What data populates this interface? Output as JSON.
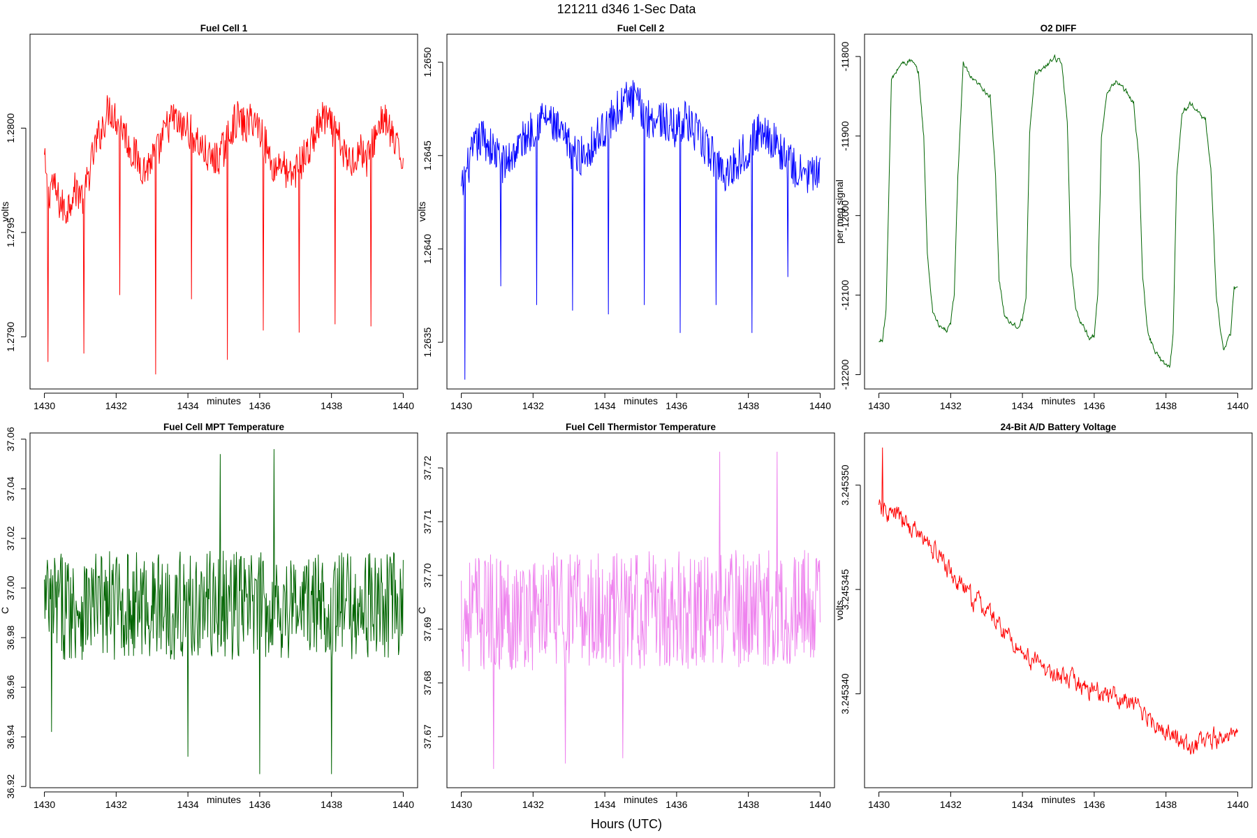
{
  "figure": {
    "title": "121211    d346    1-Sec Data",
    "xlabel": "Hours (UTC)"
  },
  "chart_data": [
    {
      "type": "line",
      "title": "Fuel Cell 1",
      "xlabel": "minutes",
      "ylabel": "volts",
      "color": "#ff0000",
      "xlim": [
        1429.6,
        1440.4
      ],
      "ylim": [
        1.27875,
        1.28045
      ],
      "xticks": [
        1430,
        1432,
        1434,
        1436,
        1438,
        1440
      ],
      "yticks": [
        1.279,
        1.2795,
        1.28
      ],
      "ytick_labels": [
        "1.2790",
        "1.2795",
        "1.2800"
      ],
      "series": [
        {
          "x": [
            1430.0,
            1430.1,
            1430.2,
            1430.4,
            1430.6,
            1430.8,
            1431.0,
            1431.1,
            1431.2,
            1431.4,
            1431.6,
            1431.8,
            1432.0,
            1432.2,
            1432.4,
            1432.6,
            1432.8,
            1433.0,
            1433.2,
            1433.4,
            1433.6,
            1433.8,
            1434.0,
            1434.2,
            1434.4,
            1434.6,
            1434.8,
            1435.0,
            1435.2,
            1435.4,
            1435.6,
            1435.8,
            1436.0,
            1436.2,
            1436.4,
            1436.6,
            1436.8,
            1437.0,
            1437.2,
            1437.4,
            1437.6,
            1437.8,
            1438.0,
            1438.2,
            1438.4,
            1438.6,
            1438.8,
            1439.0,
            1439.2,
            1439.4,
            1439.6,
            1439.8,
            1440.0
          ],
          "values": [
            1.27985,
            1.27965,
            1.27975,
            1.27965,
            1.2796,
            1.2797,
            1.2797,
            1.27965,
            1.27975,
            1.2799,
            1.28,
            1.2801,
            1.28005,
            1.28,
            1.2799,
            1.27985,
            1.2798,
            1.27985,
            1.2799,
            1.28,
            1.28005,
            1.28,
            1.28,
            1.27995,
            1.2799,
            1.27985,
            1.27985,
            1.2799,
            1.28,
            1.28005,
            1.28,
            1.28005,
            1.28,
            1.2799,
            1.2798,
            1.27985,
            1.27975,
            1.2798,
            1.27985,
            1.2799,
            1.28,
            1.28005,
            1.28,
            1.27995,
            1.27985,
            1.27985,
            1.2799,
            1.27985,
            1.27995,
            1.28005,
            1.28,
            1.2799,
            1.27985
          ],
          "spikes": [
            {
              "x": 1430.1,
              "y": 1.27888
            },
            {
              "x": 1431.1,
              "y": 1.27892
            },
            {
              "x": 1432.1,
              "y": 1.2792
            },
            {
              "x": 1433.1,
              "y": 1.27882
            },
            {
              "x": 1434.1,
              "y": 1.27918
            },
            {
              "x": 1435.1,
              "y": 1.27889
            },
            {
              "x": 1436.1,
              "y": 1.27903
            },
            {
              "x": 1437.1,
              "y": 1.27902
            },
            {
              "x": 1438.1,
              "y": 1.27906
            },
            {
              "x": 1439.1,
              "y": 1.27905
            }
          ],
          "noise": 9e-05
        }
      ]
    },
    {
      "type": "line",
      "title": "Fuel Cell 2",
      "xlabel": "minutes",
      "ylabel": "volts",
      "color": "#0000ff",
      "xlim": [
        1429.6,
        1440.4
      ],
      "ylim": [
        1.26325,
        1.26515
      ],
      "xticks": [
        1430,
        1432,
        1434,
        1436,
        1438,
        1440
      ],
      "yticks": [
        1.2635,
        1.264,
        1.2645,
        1.265
      ],
      "ytick_labels": [
        "1.2635",
        "1.2640",
        "1.2645",
        "1.2650"
      ],
      "series": [
        {
          "x": [
            1430.0,
            1430.2,
            1430.4,
            1430.6,
            1430.8,
            1431.0,
            1431.2,
            1431.4,
            1431.6,
            1431.8,
            1432.0,
            1432.2,
            1432.4,
            1432.6,
            1432.8,
            1433.0,
            1433.2,
            1433.4,
            1433.6,
            1433.8,
            1434.0,
            1434.2,
            1434.4,
            1434.6,
            1434.8,
            1435.0,
            1435.2,
            1435.4,
            1435.6,
            1435.8,
            1436.0,
            1436.2,
            1436.4,
            1436.6,
            1436.8,
            1437.0,
            1437.2,
            1437.4,
            1437.6,
            1437.8,
            1438.0,
            1438.2,
            1438.4,
            1438.6,
            1438.8,
            1439.0,
            1439.2,
            1439.4,
            1439.6,
            1439.8,
            1440.0
          ],
          "values": [
            1.2643,
            1.26445,
            1.26455,
            1.2646,
            1.26455,
            1.2645,
            1.26445,
            1.2645,
            1.26455,
            1.2646,
            1.26465,
            1.2647,
            1.2647,
            1.26465,
            1.2646,
            1.26455,
            1.2645,
            1.2645,
            1.26455,
            1.2646,
            1.26465,
            1.2647,
            1.26475,
            1.2648,
            1.2648,
            1.26475,
            1.2647,
            1.2647,
            1.2647,
            1.26465,
            1.26465,
            1.2647,
            1.26465,
            1.2646,
            1.26455,
            1.2645,
            1.26445,
            1.2644,
            1.26445,
            1.2645,
            1.26455,
            1.2646,
            1.26465,
            1.2646,
            1.26455,
            1.2645,
            1.26445,
            1.2644,
            1.2644,
            1.2644,
            1.26438
          ],
          "spikes": [
            {
              "x": 1430.1,
              "y": 1.2633
            },
            {
              "x": 1431.1,
              "y": 1.2638
            },
            {
              "x": 1432.1,
              "y": 1.2637
            },
            {
              "x": 1433.1,
              "y": 1.26367
            },
            {
              "x": 1434.1,
              "y": 1.26365
            },
            {
              "x": 1435.1,
              "y": 1.2637
            },
            {
              "x": 1436.1,
              "y": 1.26355
            },
            {
              "x": 1437.1,
              "y": 1.2637
            },
            {
              "x": 1438.1,
              "y": 1.26355
            },
            {
              "x": 1439.1,
              "y": 1.26385
            }
          ],
          "noise": 0.00011
        }
      ]
    },
    {
      "type": "line",
      "title": "O2 DIFF",
      "xlabel": "minutes",
      "ylabel": "per meg signal",
      "color": "#006400",
      "xlim": [
        1429.6,
        1440.4
      ],
      "ylim": [
        -12218,
        -11772
      ],
      "xticks": [
        1430,
        1432,
        1434,
        1436,
        1438,
        1440
      ],
      "yticks": [
        -12200,
        -12100,
        -12000,
        -11900,
        -11800
      ],
      "ytick_labels": [
        "-12200",
        "-12100",
        "-12000",
        "-11900",
        "-11800"
      ],
      "series": [
        {
          "x": [
            1430.0,
            1430.1,
            1430.2,
            1430.35,
            1430.6,
            1430.9,
            1431.1,
            1431.25,
            1431.35,
            1431.5,
            1431.7,
            1431.9,
            1432.0,
            1432.1,
            1432.2,
            1432.35,
            1432.6,
            1432.9,
            1433.1,
            1433.25,
            1433.35,
            1433.5,
            1433.7,
            1433.9,
            1434.0,
            1434.1,
            1434.2,
            1434.35,
            1434.6,
            1434.9,
            1435.1,
            1435.25,
            1435.35,
            1435.5,
            1435.7,
            1435.9,
            1436.0,
            1436.1,
            1436.2,
            1436.35,
            1436.6,
            1436.9,
            1437.1,
            1437.25,
            1437.35,
            1437.5,
            1437.7,
            1437.9,
            1438.1,
            1438.2,
            1438.3,
            1438.45,
            1438.7,
            1438.9,
            1439.1,
            1439.25,
            1439.4,
            1439.6,
            1439.8,
            1439.9,
            1440.0
          ],
          "values": [
            -12160,
            -12155,
            -12120,
            -11830,
            -11810,
            -11805,
            -11820,
            -11900,
            -12050,
            -12120,
            -12140,
            -12145,
            -12135,
            -12100,
            -11950,
            -11810,
            -11830,
            -11840,
            -11850,
            -11950,
            -12080,
            -12125,
            -12135,
            -12140,
            -12130,
            -12100,
            -11900,
            -11820,
            -11815,
            -11800,
            -11810,
            -11880,
            -12060,
            -12120,
            -12140,
            -12155,
            -12150,
            -12100,
            -11900,
            -11850,
            -11830,
            -11845,
            -11860,
            -11930,
            -12080,
            -12150,
            -12170,
            -12185,
            -12190,
            -12150,
            -11950,
            -11870,
            -11860,
            -11870,
            -11880,
            -11940,
            -12100,
            -12170,
            -12150,
            -12090,
            -12090
          ],
          "noise": 6
        }
      ]
    },
    {
      "type": "line",
      "title": "Fuel Cell MPT Temperature",
      "xlabel": "minutes",
      "ylabel": "C",
      "color": "#006400",
      "xlim": [
        1429.6,
        1440.4
      ],
      "ylim": [
        36.9195,
        37.0625
      ],
      "xticks": [
        1430,
        1432,
        1434,
        1436,
        1438,
        1440
      ],
      "yticks": [
        36.92,
        36.94,
        36.96,
        36.98,
        37.0,
        37.02,
        37.04,
        37.06
      ],
      "ytick_labels": [
        "36.92",
        "36.94",
        "36.96",
        "36.98",
        "37.00",
        "37.02",
        "37.04",
        "37.06"
      ],
      "series": [
        {
          "x": [
            1430.0,
            1440.0
          ],
          "values": [
            36.993,
            36.993
          ],
          "noise": 0.022,
          "spikes": [
            {
              "x": 1434.9,
              "y": 37.054
            },
            {
              "x": 1436.4,
              "y": 37.056
            },
            {
              "x": 1436.0,
              "y": 36.925
            },
            {
              "x": 1438.0,
              "y": 36.925
            },
            {
              "x": 1434.0,
              "y": 36.932
            },
            {
              "x": 1430.2,
              "y": 36.942
            }
          ]
        }
      ]
    },
    {
      "type": "line",
      "title": "Fuel Cell Thermistor Temperature",
      "xlabel": "minutes",
      "ylabel": "C",
      "color": "#ee82ee",
      "xlim": [
        1429.6,
        1440.4
      ],
      "ylim": [
        37.6605,
        37.7265
      ],
      "xticks": [
        1430,
        1432,
        1434,
        1436,
        1438,
        1440
      ],
      "yticks": [
        37.67,
        37.68,
        37.69,
        37.7,
        37.71,
        37.72
      ],
      "ytick_labels": [
        "37.67",
        "37.68",
        "37.69",
        "37.70",
        "37.71",
        "37.72"
      ],
      "series": [
        {
          "x": [
            1430.0,
            1440.0
          ],
          "values": [
            37.693,
            37.694
          ],
          "noise": 0.011,
          "spikes": [
            {
              "x": 1430.9,
              "y": 37.664
            },
            {
              "x": 1432.9,
              "y": 37.665
            },
            {
              "x": 1434.5,
              "y": 37.666
            },
            {
              "x": 1437.2,
              "y": 37.723
            },
            {
              "x": 1438.8,
              "y": 37.723
            }
          ]
        }
      ]
    },
    {
      "type": "line",
      "title": "24-Bit A/D Battery Voltage",
      "xlabel": "minutes",
      "ylabel": "volts",
      "color": "#ff0000",
      "xlim": [
        1429.6,
        1440.4
      ],
      "ylim": [
        3.2453355,
        3.2453525
      ],
      "xticks": [
        1430,
        1432,
        1434,
        1436,
        1438,
        1440
      ],
      "yticks": [
        3.24534,
        3.245345,
        3.24535
      ],
      "ytick_labels": [
        "3.245340",
        "3.245345",
        "3.245350"
      ],
      "series": [
        {
          "x": [
            1430.0,
            1430.5,
            1431.0,
            1431.5,
            1432.0,
            1432.5,
            1433.0,
            1433.5,
            1434.0,
            1434.5,
            1435.0,
            1435.5,
            1436.0,
            1436.5,
            1437.0,
            1437.5,
            1438.0,
            1438.5,
            1439.0,
            1439.5,
            1440.0
          ],
          "values": [
            3.2453488,
            3.2453485,
            3.2453478,
            3.245347,
            3.2453458,
            3.2453447,
            3.245344,
            3.245343,
            3.245342,
            3.2453413,
            3.2453408,
            3.2453405,
            3.2453402,
            3.24534,
            3.2453395,
            3.245339,
            3.2453382,
            3.2453375,
            3.2453375,
            3.245338,
            3.2453378
          ],
          "noise": 9e-07,
          "spikes": [
            {
              "x": 1430.1,
              "y": 3.2453518
            }
          ]
        }
      ]
    }
  ]
}
